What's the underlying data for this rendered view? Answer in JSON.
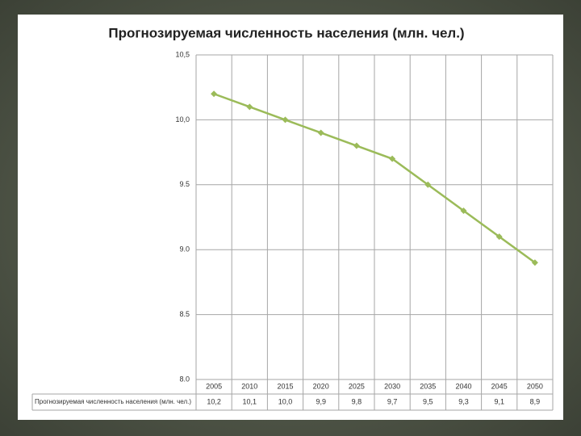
{
  "chart_data": {
    "type": "line",
    "title": "Прогнозируемая численность населения (млн. чел.)",
    "categories": [
      "2005",
      "2010",
      "2015",
      "2020",
      "2025",
      "2030",
      "2035",
      "2040",
      "2045",
      "2050"
    ],
    "series": [
      {
        "name": "Прогнозируемая численность населения (млн. чел.)",
        "color": "#9bbb59",
        "values": [
          10.2,
          10.1,
          10.0,
          9.9,
          9.8,
          9.7,
          9.5,
          9.3,
          9.1,
          8.9
        ],
        "value_labels": [
          "10,2",
          "10,1",
          "10,0",
          "9,9",
          "9,8",
          "9,7",
          "9,5",
          "9,3",
          "9,1",
          "8,9"
        ]
      }
    ],
    "ylim": [
      8.0,
      10.5
    ],
    "yticks": [
      {
        "value": 8.0,
        "label": "8.0"
      },
      8.5,
      {
        "value": 9.0,
        "label": "9.0"
      },
      9.5,
      {
        "value": 10.0,
        "label": "10,0"
      },
      {
        "value": 10.5,
        "label": "10,5"
      }
    ],
    "grid": true
  }
}
